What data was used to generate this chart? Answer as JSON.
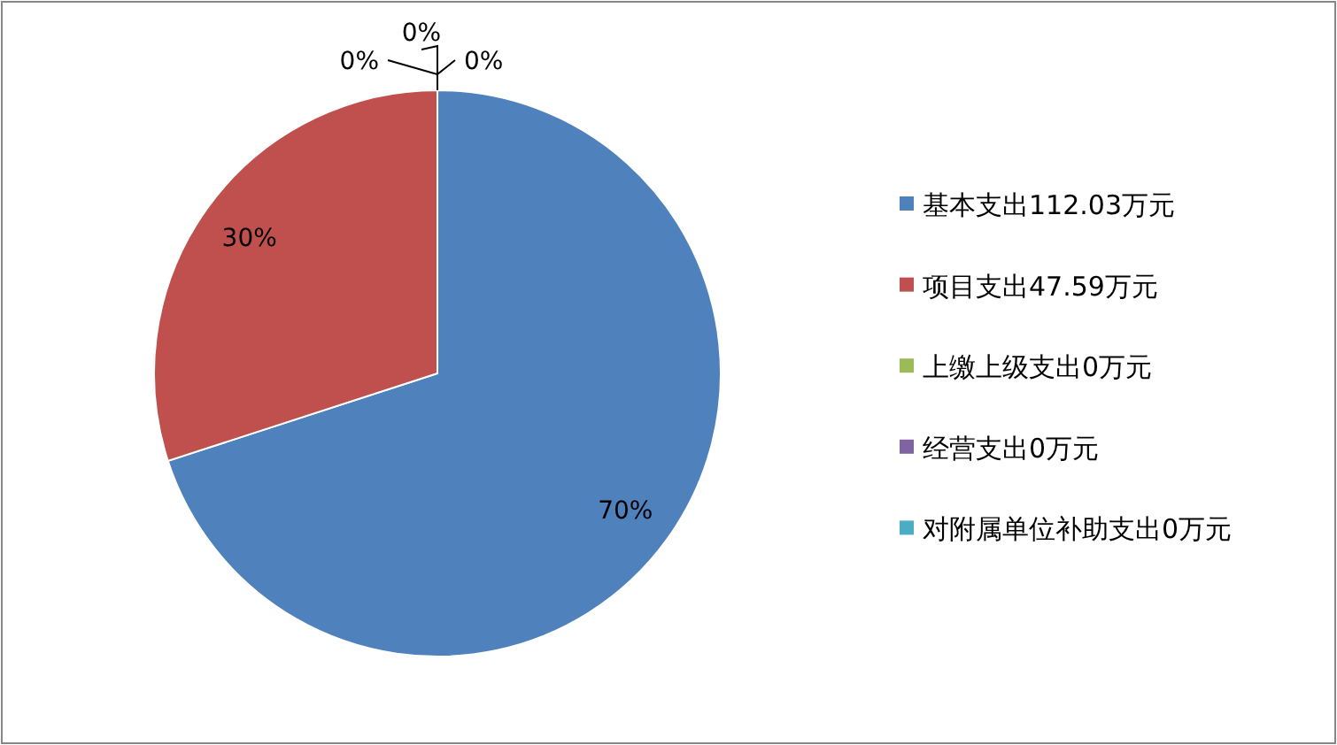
{
  "chart_data": {
    "type": "pie",
    "categories": [
      "基本支出112.03万元",
      "项目支出47.59万元",
      "上缴上级支出0万元",
      "经营支出0万元",
      "对附属单位补助支出0万元"
    ],
    "values": [
      70,
      30,
      0,
      0,
      0
    ],
    "colors": [
      "#4f81bd",
      "#c0504d",
      "#9bbb59",
      "#8064a2",
      "#4bacc6"
    ],
    "value_labels": [
      "70%",
      "30%",
      "0%",
      "0%",
      "0%"
    ],
    "legend": "right"
  }
}
